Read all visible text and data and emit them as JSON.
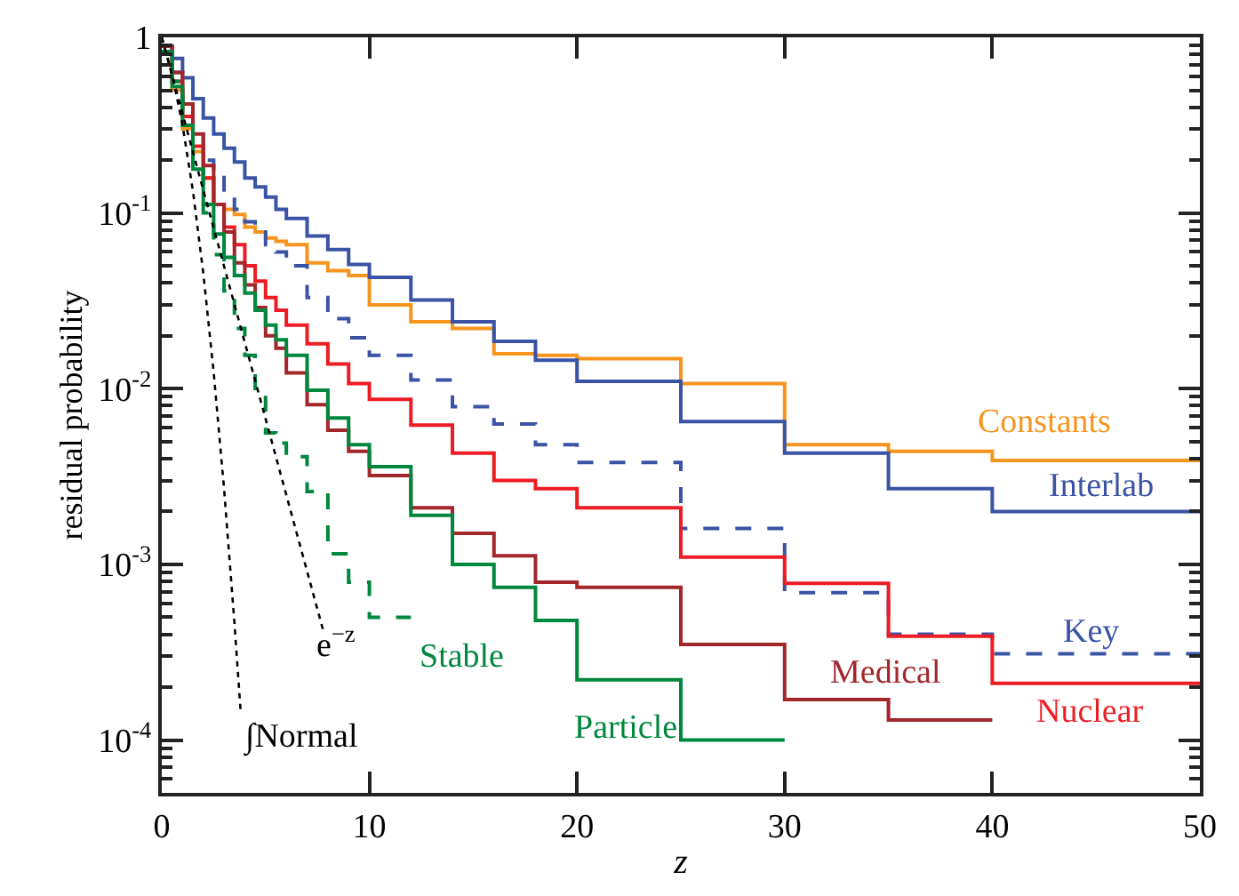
{
  "chart_data": {
    "type": "step",
    "xlabel": "z",
    "ylabel": "residual probability",
    "xlim": [
      0,
      50
    ],
    "xticks": [
      0,
      10,
      20,
      30,
      40,
      50
    ],
    "ylim": [
      5e-05,
      1
    ],
    "yticks": [
      {
        "value": 0.0001,
        "label": "10$^{-4}$"
      },
      {
        "value": 0.001,
        "label": "10$^{-3}$"
      },
      {
        "value": 0.01,
        "label": "10$^{-2}$"
      },
      {
        "value": 0.1,
        "label": "10$^{-1}$"
      },
      1
    ],
    "log": true,
    "legend": false,
    "series": [
      {
        "name": "Constants",
        "color": "#f7941d",
        "line_style": "solid",
        "x": [
          0,
          0.5,
          1,
          1.5,
          2,
          2.5,
          3,
          3.5,
          4,
          4.5,
          5,
          5.5,
          6,
          7,
          8,
          9,
          10,
          12,
          14,
          16,
          18,
          20,
          25,
          30,
          35,
          40,
          50
        ],
        "values": [
          0.891,
          0.501,
          0.302,
          0.224,
          0.158,
          0.112,
          0.105,
          0.098,
          0.083,
          0.078,
          0.072,
          0.069,
          0.066,
          0.052,
          0.047,
          0.044,
          0.03,
          0.024,
          0.022,
          0.0158,
          0.0155,
          0.0148,
          0.0107,
          0.0048,
          0.0044,
          0.0039,
          0.0039
        ]
      },
      {
        "name": "Interlab",
        "color": "#3a53a4",
        "line_style": "solid",
        "x": [
          0,
          0.5,
          1,
          1.5,
          2,
          2.5,
          3,
          3.5,
          4,
          4.5,
          5,
          5.5,
          6,
          7,
          8,
          9,
          10,
          12,
          14,
          16,
          18,
          20,
          25,
          30,
          35,
          40,
          50
        ],
        "values": [
          0.891,
          0.759,
          0.589,
          0.447,
          0.347,
          0.282,
          0.234,
          0.195,
          0.158,
          0.141,
          0.123,
          0.105,
          0.093,
          0.074,
          0.062,
          0.051,
          0.043,
          0.032,
          0.024,
          0.0186,
          0.0145,
          0.011,
          0.0065,
          0.0043,
          0.0027,
          0.002,
          0.002
        ]
      },
      {
        "name": "Key",
        "color": "#3a53a4",
        "line_style": "dashed",
        "x": [
          0,
          0.5,
          1,
          1.5,
          2,
          2.5,
          3,
          3.5,
          4,
          4.5,
          5,
          5.5,
          6,
          7,
          8,
          9,
          10,
          12,
          14,
          16,
          18,
          20,
          25,
          30,
          35,
          40,
          50
        ],
        "values": [
          0.891,
          0.631,
          0.417,
          0.302,
          0.2,
          0.166,
          0.126,
          0.105,
          0.089,
          0.078,
          0.066,
          0.06,
          0.05,
          0.033,
          0.025,
          0.0195,
          0.0155,
          0.0112,
          0.0079,
          0.0063,
          0.0048,
          0.0038,
          0.0016,
          0.00069,
          0.0004,
          0.00031,
          0.00031
        ]
      },
      {
        "name": "Nuclear",
        "color": "#ed1c24",
        "line_style": "solid",
        "x": [
          0,
          0.5,
          1,
          1.5,
          2,
          2.5,
          3,
          3.5,
          4,
          4.5,
          5,
          5.5,
          6,
          7,
          8,
          9,
          10,
          12,
          14,
          16,
          18,
          20,
          25,
          30,
          35,
          40,
          50
        ],
        "values": [
          0.891,
          0.562,
          0.355,
          0.24,
          0.158,
          0.112,
          0.083,
          0.066,
          0.05,
          0.041,
          0.033,
          0.028,
          0.023,
          0.018,
          0.0138,
          0.0107,
          0.0087,
          0.0062,
          0.0043,
          0.003,
          0.0027,
          0.0021,
          0.0011,
          0.00078,
          0.00039,
          0.00021,
          0.00021
        ]
      },
      {
        "name": "Medical",
        "color": "#a3262a",
        "line_style": "solid",
        "x": [
          0,
          0.5,
          1,
          1.5,
          2,
          2.5,
          3,
          3.5,
          4,
          4.5,
          5,
          5.5,
          6,
          7,
          8,
          9,
          10,
          12,
          14,
          16,
          18,
          20,
          25,
          30,
          35,
          40
        ],
        "values": [
          0.891,
          0.631,
          0.417,
          0.282,
          0.186,
          0.112,
          0.078,
          0.052,
          0.039,
          0.029,
          0.02,
          0.017,
          0.0123,
          0.0081,
          0.0058,
          0.0044,
          0.0032,
          0.0021,
          0.0015,
          0.00112,
          0.00079,
          0.00074,
          0.00035,
          0.00017,
          0.00013,
          0.00013
        ]
      },
      {
        "name": "Particle",
        "color": "#00873e",
        "line_style": "solid",
        "x": [
          0,
          0.5,
          1,
          1.5,
          2,
          2.5,
          3,
          3.5,
          4,
          4.5,
          5,
          5.5,
          6,
          7,
          8,
          9,
          10,
          12,
          14,
          16,
          18,
          20,
          25,
          30
        ],
        "values": [
          0.83,
          0.525,
          0.316,
          0.178,
          0.112,
          0.076,
          0.056,
          0.044,
          0.035,
          0.028,
          0.023,
          0.019,
          0.0155,
          0.0098,
          0.0068,
          0.0048,
          0.0036,
          0.0019,
          0.001,
          0.00074,
          0.00048,
          0.00022,
          0.0001,
          0.0001
        ]
      },
      {
        "name": "Stable",
        "color": "#00873e",
        "line_style": "dashed",
        "x": [
          0,
          0.5,
          1,
          1.5,
          2,
          2.5,
          3,
          3.5,
          4,
          4.5,
          5,
          5.5,
          6,
          7,
          8,
          9,
          10,
          12
        ],
        "values": [
          0.83,
          0.562,
          0.316,
          0.178,
          0.1,
          0.058,
          0.036,
          0.022,
          0.0155,
          0.0089,
          0.0056,
          0.0049,
          0.0041,
          0.0026,
          0.00115,
          0.00079,
          0.0005,
          0.0005
        ]
      },
      {
        "name": "e$^{−z}$",
        "type": "line",
        "color": "#000000",
        "line_style": "dotted",
        "x": [
          0,
          1,
          2,
          3,
          4,
          5,
          6,
          7,
          7.8
        ],
        "values": [
          1,
          0.368,
          0.135,
          0.0498,
          0.0183,
          0.00674,
          0.00248,
          0.000912,
          0.00041
        ]
      },
      {
        "name": "∫Normal",
        "type": "line",
        "color": "#000000",
        "line_style": "dotted",
        "x": [
          0,
          0.5,
          1,
          1.5,
          2,
          2.5,
          3,
          3.5,
          3.8
        ],
        "values": [
          1,
          0.617,
          0.317,
          0.134,
          0.0455,
          0.0124,
          0.0027,
          0.000465,
          0.000145
        ]
      }
    ]
  }
}
